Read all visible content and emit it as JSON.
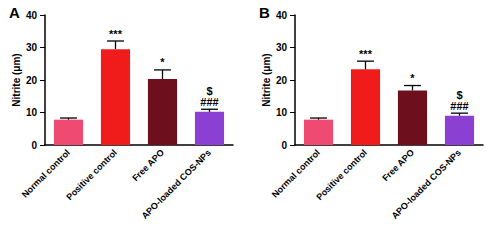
{
  "chart_data": [
    {
      "type": "bar",
      "title": "A",
      "y_label": "Nitrite (μm)",
      "categories": [
        "Normal control",
        "Positive control",
        "Free APO",
        "APO-loaded COS-NPs"
      ],
      "values": [
        7.8,
        29.5,
        20.3,
        10.2
      ],
      "errors": [
        0.5,
        2.5,
        2.8,
        0.8
      ],
      "colors": [
        "#ee4a72",
        "#f01c1c",
        "#6e0f1e",
        "#8b3fd3"
      ],
      "annotations": [
        {
          "category": "Positive control",
          "text": "***"
        },
        {
          "category": "Free APO",
          "text": "*"
        },
        {
          "category": "APO-loaded COS-NPs",
          "text": "###"
        },
        {
          "category": "APO-loaded COS-NPs",
          "text": "$"
        }
      ],
      "ylim": [
        0,
        40
      ],
      "yticks": [
        0,
        10,
        20,
        30,
        40
      ],
      "grid": false
    },
    {
      "type": "bar",
      "title": "B",
      "y_label": "Nitrite (μm)",
      "categories": [
        "Normal control",
        "Positive control",
        "Free APO",
        "APO-loaded COS-NPs"
      ],
      "values": [
        7.8,
        23.3,
        16.8,
        9.0
      ],
      "errors": [
        0.5,
        2.5,
        1.5,
        0.8
      ],
      "colors": [
        "#ee4a72",
        "#f01c1c",
        "#6e0f1e",
        "#8b3fd3"
      ],
      "annotations": [
        {
          "category": "Positive control",
          "text": "***"
        },
        {
          "category": "Free APO",
          "text": "*"
        },
        {
          "category": "APO-loaded COS-NPs",
          "text": "###"
        },
        {
          "category": "APO-loaded COS-NPs",
          "text": "$"
        }
      ],
      "ylim": [
        0,
        40
      ],
      "yticks": [
        0,
        10,
        20,
        30,
        40
      ],
      "grid": false
    }
  ]
}
